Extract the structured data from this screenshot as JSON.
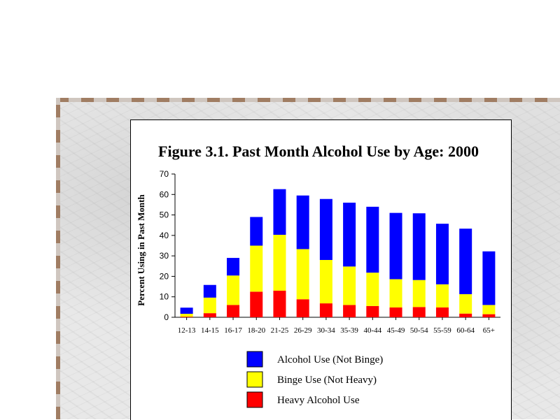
{
  "chart_data": {
    "type": "bar",
    "stacked": true,
    "title": "Figure 3.1.  Past Month Alcohol Use by Age: 2000",
    "xlabel": "",
    "ylabel": "Percent Using in Past Month",
    "ylim": [
      0,
      70
    ],
    "yticks": [
      0,
      10,
      20,
      30,
      40,
      50,
      60,
      70
    ],
    "categories": [
      "12-13",
      "14-15",
      "16-17",
      "18-20",
      "21-25",
      "26-29",
      "30-34",
      "35-39",
      "40-44",
      "45-49",
      "50-54",
      "55-59",
      "60-64",
      "65+"
    ],
    "series": [
      {
        "name": "Heavy Alcohol Use",
        "color": "#ff0000",
        "values": [
          0.3,
          2.0,
          6.0,
          12.5,
          13.0,
          8.8,
          6.8,
          6.0,
          5.5,
          4.8,
          5.0,
          4.8,
          1.8,
          1.5
        ]
      },
      {
        "name": "Binge Use (Not Heavy)",
        "color": "#ffff00",
        "values": [
          1.4,
          7.6,
          14.4,
          22.5,
          27.3,
          24.5,
          21.2,
          18.8,
          16.3,
          13.8,
          13.2,
          11.3,
          9.5,
          4.5
        ]
      },
      {
        "name": "Alcohol Use (Not Binge)",
        "color": "#0000ff",
        "values": [
          3.0,
          6.2,
          8.6,
          14.0,
          22.3,
          26.2,
          29.8,
          31.2,
          32.2,
          32.4,
          32.6,
          29.6,
          32.0,
          26.2
        ]
      }
    ],
    "legend_position": "bottom",
    "grid": false
  }
}
